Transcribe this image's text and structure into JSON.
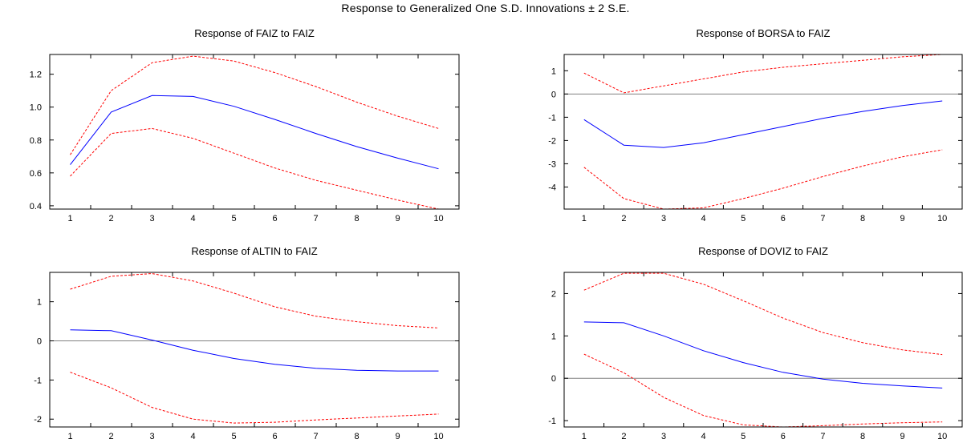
{
  "figure_title": "Response to Generalized One S.D. Innovations ± 2 S.E.",
  "colors": {
    "response": "#0000ff",
    "bands": "#ff0000",
    "zero_line": "#808080",
    "frame": "#000000"
  },
  "chart_data": [
    {
      "type": "line",
      "title": "Response of FAIZ to FAIZ",
      "x": [
        1,
        2,
        3,
        4,
        5,
        6,
        7,
        8,
        9,
        10
      ],
      "ylim": [
        0.38,
        1.32
      ],
      "yticks": [
        0.4,
        0.6,
        0.8,
        1.0,
        1.2
      ],
      "ytick_labels": [
        "0.4",
        "0.6",
        "0.8",
        "1.0",
        "1.2"
      ],
      "zero_line": false,
      "series": [
        {
          "role": "response",
          "values": [
            0.65,
            0.97,
            1.07,
            1.065,
            1.005,
            0.925,
            0.84,
            0.76,
            0.69,
            0.625
          ]
        },
        {
          "role": "upper",
          "values": [
            0.71,
            1.1,
            1.27,
            1.31,
            1.28,
            1.21,
            1.125,
            1.03,
            0.945,
            0.87
          ]
        },
        {
          "role": "lower",
          "values": [
            0.58,
            0.84,
            0.87,
            0.81,
            0.72,
            0.63,
            0.555,
            0.495,
            0.435,
            0.38
          ]
        }
      ]
    },
    {
      "type": "line",
      "title": "Response of BORSA to FAIZ",
      "x": [
        1,
        2,
        3,
        4,
        5,
        6,
        7,
        8,
        9,
        10
      ],
      "ylim": [
        -4.95,
        1.7
      ],
      "yticks": [
        -4,
        -3,
        -2,
        -1,
        0,
        1
      ],
      "ytick_labels": [
        "-4",
        "-3",
        "-2",
        "-1",
        "0",
        "1"
      ],
      "zero_line": true,
      "series": [
        {
          "role": "response",
          "values": [
            -1.1,
            -2.2,
            -2.3,
            -2.1,
            -1.75,
            -1.4,
            -1.05,
            -0.75,
            -0.5,
            -0.3
          ]
        },
        {
          "role": "upper",
          "values": [
            0.9,
            0.05,
            0.35,
            0.65,
            0.95,
            1.15,
            1.3,
            1.45,
            1.6,
            1.7
          ]
        },
        {
          "role": "lower",
          "values": [
            -3.15,
            -4.5,
            -4.95,
            -4.9,
            -4.5,
            -4.05,
            -3.55,
            -3.1,
            -2.7,
            -2.4
          ]
        }
      ]
    },
    {
      "type": "line",
      "title": "Response of ALTIN to FAIZ",
      "x": [
        1,
        2,
        3,
        4,
        5,
        6,
        7,
        8,
        9,
        10
      ],
      "ylim": [
        -2.2,
        1.75
      ],
      "yticks": [
        -2,
        -1,
        0,
        1
      ],
      "ytick_labels": [
        "-2",
        "-1",
        "0",
        "1"
      ],
      "zero_line": true,
      "series": [
        {
          "role": "response",
          "values": [
            0.28,
            0.26,
            0.02,
            -0.24,
            -0.45,
            -0.6,
            -0.7,
            -0.75,
            -0.77,
            -0.77
          ]
        },
        {
          "role": "upper",
          "values": [
            1.32,
            1.65,
            1.72,
            1.53,
            1.22,
            0.87,
            0.63,
            0.49,
            0.39,
            0.33
          ]
        },
        {
          "role": "lower",
          "values": [
            -0.8,
            -1.2,
            -1.7,
            -2.0,
            -2.1,
            -2.08,
            -2.02,
            -1.97,
            -1.92,
            -1.87
          ]
        }
      ]
    },
    {
      "type": "line",
      "title": "Response of DOVIZ to FAIZ",
      "x": [
        1,
        2,
        3,
        4,
        5,
        6,
        7,
        8,
        9,
        10
      ],
      "ylim": [
        -1.15,
        2.5
      ],
      "yticks": [
        -1,
        0,
        1,
        2
      ],
      "ytick_labels": [
        "-1",
        "0",
        "1",
        "2"
      ],
      "zero_line": true,
      "series": [
        {
          "role": "response",
          "values": [
            1.33,
            1.31,
            1.0,
            0.65,
            0.37,
            0.14,
            -0.02,
            -0.12,
            -0.18,
            -0.23
          ]
        },
        {
          "role": "upper",
          "values": [
            2.08,
            2.48,
            2.48,
            2.22,
            1.83,
            1.42,
            1.08,
            0.84,
            0.67,
            0.56
          ]
        },
        {
          "role": "lower",
          "values": [
            0.57,
            0.13,
            -0.45,
            -0.88,
            -1.1,
            -1.15,
            -1.12,
            -1.08,
            -1.05,
            -1.03
          ]
        }
      ]
    }
  ]
}
